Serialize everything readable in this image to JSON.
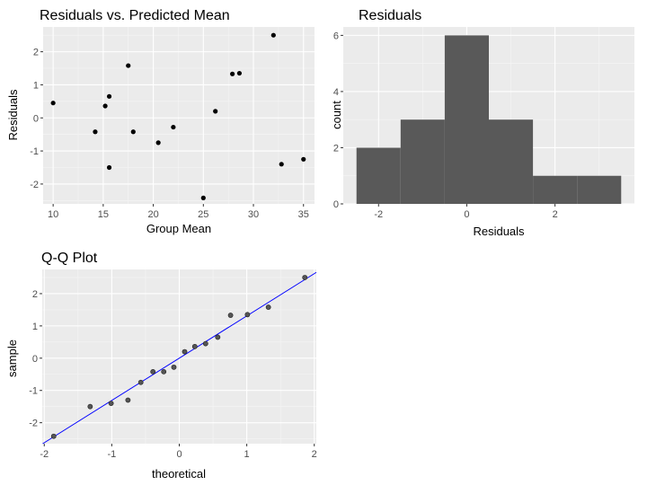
{
  "colors": {
    "panel_background": "#ebebeb",
    "grid": "#ffffff",
    "point": "#000000",
    "bar": "#595959",
    "qq_point": "#555555",
    "qq_line": "#0000ff"
  },
  "chart_data": [
    {
      "type": "scatter",
      "title": "Residuals vs. Predicted Mean",
      "xlabel": "Group Mean",
      "ylabel": "Residuals",
      "xlim": [
        9,
        36.1
      ],
      "ylim": [
        -2.6,
        2.75
      ],
      "xticks": [
        10,
        15,
        20,
        25,
        30,
        35
      ],
      "yticks": [
        -2,
        -1,
        0,
        1,
        2
      ],
      "grid": true,
      "points": [
        {
          "x": 10.0,
          "y": 0.45
        },
        {
          "x": 14.2,
          "y": -0.42
        },
        {
          "x": 15.2,
          "y": 0.36
        },
        {
          "x": 15.6,
          "y": 0.65
        },
        {
          "x": 15.6,
          "y": -1.5
        },
        {
          "x": 17.5,
          "y": 1.58
        },
        {
          "x": 18.0,
          "y": -0.42
        },
        {
          "x": 20.5,
          "y": -0.75
        },
        {
          "x": 22.0,
          "y": -0.28
        },
        {
          "x": 25.0,
          "y": -2.42
        },
        {
          "x": 26.2,
          "y": 0.2
        },
        {
          "x": 27.9,
          "y": 1.33
        },
        {
          "x": 28.6,
          "y": 1.35
        },
        {
          "x": 32.0,
          "y": 2.5
        },
        {
          "x": 32.8,
          "y": -1.4
        },
        {
          "x": 35.0,
          "y": -1.25
        }
      ]
    },
    {
      "type": "bar",
      "title": "Residuals",
      "xlabel": "Residuals",
      "ylabel": "count",
      "xlim": [
        -2.8,
        3.8
      ],
      "ylim": [
        0,
        6.3
      ],
      "xticks": [
        -2,
        0,
        2
      ],
      "yticks": [
        0,
        2,
        4,
        6
      ],
      "grid": true,
      "bins": [
        {
          "from": -2.5,
          "to": -1.5,
          "count": 2
        },
        {
          "from": -1.5,
          "to": -0.5,
          "count": 3
        },
        {
          "from": -0.5,
          "to": 0.5,
          "count": 6
        },
        {
          "from": 0.5,
          "to": 1.5,
          "count": 3
        },
        {
          "from": 1.5,
          "to": 2.5,
          "count": 1
        },
        {
          "from": 2.5,
          "to": 3.5,
          "count": 1
        }
      ]
    },
    {
      "type": "scatter",
      "title": "Q-Q Plot",
      "xlabel": "theoretical",
      "ylabel": "sample",
      "xlim": [
        -2.03,
        2.03
      ],
      "ylim": [
        -2.65,
        2.75
      ],
      "xticks": [
        -2,
        -1,
        0,
        1,
        2
      ],
      "yticks": [
        -2,
        -1,
        0,
        1,
        2
      ],
      "grid": true,
      "reference_line": {
        "intercept": 0,
        "slope": 1.31
      },
      "points": [
        {
          "x": -1.86,
          "y": -2.42
        },
        {
          "x": -1.32,
          "y": -1.5
        },
        {
          "x": -1.01,
          "y": -1.4
        },
        {
          "x": -0.76,
          "y": -1.3
        },
        {
          "x": -0.57,
          "y": -0.75
        },
        {
          "x": -0.39,
          "y": -0.42
        },
        {
          "x": -0.23,
          "y": -0.42
        },
        {
          "x": -0.08,
          "y": -0.28
        },
        {
          "x": 0.08,
          "y": 0.2
        },
        {
          "x": 0.23,
          "y": 0.36
        },
        {
          "x": 0.39,
          "y": 0.45
        },
        {
          "x": 0.57,
          "y": 0.65
        },
        {
          "x": 0.76,
          "y": 1.33
        },
        {
          "x": 1.01,
          "y": 1.35
        },
        {
          "x": 1.32,
          "y": 1.58
        },
        {
          "x": 1.86,
          "y": 2.5
        }
      ]
    }
  ]
}
